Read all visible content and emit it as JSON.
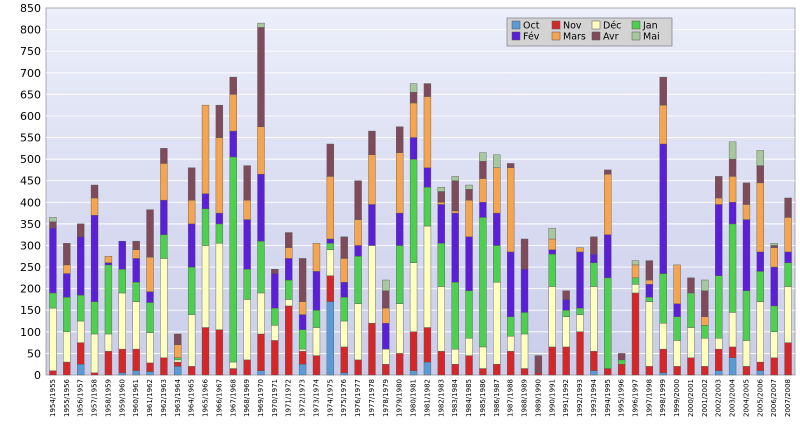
{
  "chart_data": {
    "type": "bar",
    "stacked": true,
    "title": "",
    "xlabel": "",
    "ylabel": "",
    "ylim": [
      0,
      850
    ],
    "yticks": [
      0,
      50,
      100,
      150,
      200,
      250,
      300,
      350,
      400,
      450,
      500,
      550,
      600,
      650,
      700,
      750,
      800,
      850
    ],
    "grid": true,
    "legend_position": "top-right",
    "colors": {
      "Oct": "#5b9bd5",
      "Nov": "#d62728",
      "Déc": "#ffffbf",
      "Jan": "#4fcf4f",
      "Fév": "#5a1fd6",
      "Mars": "#f5a550",
      "Avr": "#7f4b5a",
      "Mai": "#a9c79f"
    },
    "categories": [
      "1954/1955",
      "1955/1956",
      "1956/1957",
      "1957/1958",
      "1958/1959",
      "1959/1960",
      "1960/1961",
      "1961/1962",
      "1962/1963",
      "1963/1964",
      "1964/1965",
      "1965/1966",
      "1966/1967",
      "1967/1968",
      "1968/1969",
      "1969/1970",
      "1970/1971",
      "1971/1972",
      "1972/1973",
      "1973/1974",
      "1974/1975",
      "1975/1976",
      "1976/1977",
      "1977/1978",
      "1978/1979",
      "1979/1980",
      "1980/1981",
      "1981/1982",
      "1982/1983",
      "1983/1984",
      "1984/1985",
      "1985/1986",
      "1986/1987",
      "1987/1988",
      "1988/1989",
      "1989/1990",
      "1990/1991",
      "1991/1992",
      "1992/1993",
      "1993/1994",
      "1994/1995",
      "1995/1996",
      "1996/1997",
      "1997/1998",
      "1998/1999",
      "1999/2000",
      "2000/2001",
      "2001/2002",
      "2002/2003",
      "2003/2004",
      "2004/2005",
      "2005/2006",
      "2006/2007",
      "2007/2008"
    ],
    "series": [
      {
        "name": "Oct",
        "values": [
          0,
          0,
          25,
          0,
          0,
          5,
          10,
          8,
          0,
          20,
          0,
          0,
          0,
          0,
          0,
          10,
          0,
          0,
          25,
          0,
          170,
          5,
          0,
          0,
          0,
          0,
          10,
          30,
          0,
          0,
          0,
          0,
          0,
          0,
          0,
          0,
          0,
          0,
          0,
          10,
          0,
          0,
          0,
          0,
          5,
          0,
          0,
          0,
          10,
          40,
          0,
          10,
          0,
          0
        ]
      },
      {
        "name": "Nov",
        "values": [
          10,
          30,
          50,
          5,
          55,
          55,
          50,
          20,
          40,
          10,
          20,
          110,
          105,
          15,
          35,
          85,
          80,
          160,
          30,
          45,
          60,
          60,
          35,
          120,
          25,
          50,
          90,
          80,
          55,
          25,
          45,
          15,
          25,
          55,
          15,
          5,
          65,
          65,
          100,
          45,
          15,
          25,
          190,
          20,
          55,
          20,
          40,
          20,
          50,
          25,
          20,
          20,
          40,
          75
        ]
      },
      {
        "name": "Déc",
        "values": [
          145,
          70,
          50,
          90,
          40,
          130,
          110,
          70,
          230,
          5,
          120,
          190,
          200,
          15,
          140,
          95,
          35,
          15,
          5,
          65,
          60,
          60,
          130,
          180,
          35,
          115,
          160,
          235,
          150,
          35,
          40,
          50,
          190,
          35,
          80,
          0,
          140,
          70,
          40,
          150,
          0,
          0,
          20,
          150,
          60,
          60,
          70,
          65,
          25,
          80,
          60,
          140,
          60,
          130
        ]
      },
      {
        "name": "Jan",
        "values": [
          35,
          80,
          60,
          75,
          160,
          55,
          45,
          70,
          55,
          5,
          110,
          85,
          45,
          475,
          70,
          120,
          40,
          45,
          45,
          40,
          15,
          55,
          110,
          0,
          0,
          135,
          240,
          90,
          100,
          155,
          110,
          300,
          85,
          45,
          50,
          0,
          75,
          15,
          15,
          55,
          210,
          10,
          15,
          10,
          115,
          55,
          80,
          30,
          145,
          205,
          115,
          70,
          60,
          55
        ]
      },
      {
        "name": "Fév",
        "values": [
          150,
          55,
          135,
          200,
          5,
          65,
          55,
          25,
          80,
          0,
          100,
          35,
          25,
          60,
          115,
          155,
          80,
          50,
          35,
          90,
          10,
          35,
          25,
          95,
          60,
          75,
          50,
          45,
          90,
          160,
          125,
          35,
          75,
          150,
          100,
          0,
          10,
          25,
          130,
          20,
          100,
          0,
          0,
          30,
          300,
          30,
          0,
          0,
          165,
          50,
          165,
          45,
          90,
          25
        ]
      },
      {
        "name": "Mars",
        "values": [
          0,
          20,
          0,
          40,
          15,
          0,
          20,
          80,
          85,
          30,
          55,
          205,
          175,
          85,
          45,
          110,
          0,
          25,
          30,
          65,
          145,
          55,
          60,
          115,
          35,
          140,
          80,
          165,
          5,
          5,
          85,
          55,
          105,
          195,
          0,
          0,
          25,
          0,
          10,
          0,
          140,
          0,
          30,
          10,
          90,
          90,
          0,
          20,
          15,
          60,
          35,
          160,
          45,
          80
        ]
      },
      {
        "name": "Avr",
        "values": [
          15,
          50,
          30,
          30,
          0,
          0,
          20,
          110,
          35,
          25,
          75,
          0,
          75,
          40,
          80,
          230,
          10,
          35,
          100,
          0,
          75,
          50,
          90,
          55,
          40,
          60,
          25,
          30,
          25,
          70,
          25,
          40,
          0,
          10,
          70,
          40,
          0,
          20,
          0,
          40,
          10,
          15,
          0,
          45,
          65,
          0,
          35,
          60,
          50,
          40,
          50,
          40,
          5,
          45
        ]
      },
      {
        "name": "Mai",
        "values": [
          10,
          0,
          0,
          0,
          0,
          0,
          0,
          0,
          0,
          0,
          0,
          0,
          0,
          0,
          0,
          10,
          0,
          0,
          0,
          0,
          0,
          0,
          0,
          0,
          25,
          0,
          20,
          0,
          10,
          10,
          10,
          20,
          30,
          0,
          0,
          0,
          25,
          0,
          0,
          0,
          0,
          0,
          10,
          0,
          0,
          0,
          0,
          25,
          0,
          40,
          0,
          35,
          5,
          0
        ]
      }
    ]
  }
}
